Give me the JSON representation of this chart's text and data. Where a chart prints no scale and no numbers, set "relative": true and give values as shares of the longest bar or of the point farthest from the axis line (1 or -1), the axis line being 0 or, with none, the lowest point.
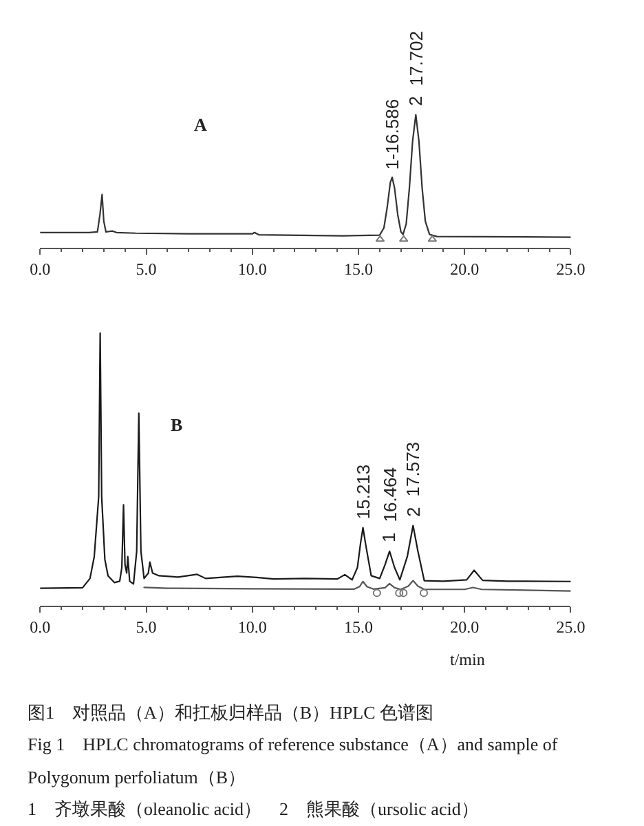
{
  "chart_data": [
    {
      "type": "line",
      "title": "A",
      "relative": true,
      "xlim": [
        0,
        25
      ],
      "xticks": [
        {
          "value": 0,
          "label": "0.0"
        },
        {
          "value": 1,
          "label": null
        },
        {
          "value": 2,
          "label": null
        },
        {
          "value": 3,
          "label": null
        },
        {
          "value": 4,
          "label": null
        },
        {
          "value": 5,
          "label": "5.0"
        },
        {
          "value": 6,
          "label": null
        },
        {
          "value": 7,
          "label": null
        },
        {
          "value": 8,
          "label": null
        },
        {
          "value": 9,
          "label": null
        },
        {
          "value": 10,
          "label": "10.0"
        },
        {
          "value": 11,
          "label": null
        },
        {
          "value": 12,
          "label": null
        },
        {
          "value": 13,
          "label": null
        },
        {
          "value": 14,
          "label": null
        },
        {
          "value": 15,
          "label": "15.0"
        },
        {
          "value": 16,
          "label": null
        },
        {
          "value": 17,
          "label": null
        },
        {
          "value": 18,
          "label": null
        },
        {
          "value": 19,
          "label": null
        },
        {
          "value": 20,
          "label": "20.0"
        },
        {
          "value": 21,
          "label": null
        },
        {
          "value": 22,
          "label": null
        },
        {
          "value": 23,
          "label": null
        },
        {
          "value": 24,
          "label": null
        },
        {
          "value": 25,
          "label": "25.0"
        }
      ],
      "series": [
        {
          "color": "#333333",
          "x": [
            0,
            2.3,
            2.7,
            2.82,
            2.92,
            3.0,
            3.1,
            3.4,
            3.6,
            4.5,
            7.0,
            10.0,
            10.1,
            10.3,
            14.3,
            16.0,
            16.2,
            16.35,
            16.5,
            16.586,
            16.7,
            16.85,
            17.0,
            17.1,
            17.25,
            17.4,
            17.55,
            17.702,
            17.85,
            18.0,
            18.15,
            18.35,
            18.7,
            25
          ],
          "values": [
            0.115,
            0.115,
            0.12,
            0.25,
            0.4,
            0.2,
            0.12,
            0.126,
            0.115,
            0.11,
            0.105,
            0.105,
            0.115,
            0.098,
            0.09,
            0.095,
            0.15,
            0.3,
            0.49,
            0.53,
            0.45,
            0.25,
            0.12,
            0.1,
            0.18,
            0.45,
            0.8,
            1.0,
            0.8,
            0.45,
            0.2,
            0.1,
            0.085,
            0.08
          ]
        },
        {
          "type": "scatter",
          "marker": "triangle",
          "color": "#777777",
          "x": [
            16.02,
            17.13,
            18.48
          ],
          "values": [
            0.063,
            0.063,
            0.063
          ]
        }
      ],
      "annotations": [
        {
          "text": "1-16.586",
          "x": 16.586,
          "y": 0.53
        },
        {
          "text": "2",
          "x": 17.702,
          "y": 1.0
        },
        {
          "text": "17.702",
          "x": 17.702,
          "y": 1.0
        }
      ]
    },
    {
      "type": "line",
      "title": "B",
      "xlabel": "t/min",
      "relative": true,
      "xlim": [
        0,
        25
      ],
      "xticks": [
        {
          "value": 0,
          "label": "0.0"
        },
        {
          "value": 1,
          "label": null
        },
        {
          "value": 2,
          "label": null
        },
        {
          "value": 3,
          "label": null
        },
        {
          "value": 4,
          "label": null
        },
        {
          "value": 5,
          "label": "5.0"
        },
        {
          "value": 6,
          "label": null
        },
        {
          "value": 7,
          "label": null
        },
        {
          "value": 8,
          "label": null
        },
        {
          "value": 9,
          "label": null
        },
        {
          "value": 10,
          "label": "10.0"
        },
        {
          "value": 11,
          "label": null
        },
        {
          "value": 12,
          "label": null
        },
        {
          "value": 13,
          "label": null
        },
        {
          "value": 14,
          "label": null
        },
        {
          "value": 15,
          "label": "15.0"
        },
        {
          "value": 16,
          "label": null
        },
        {
          "value": 17,
          "label": null
        },
        {
          "value": 18,
          "label": null
        },
        {
          "value": 19,
          "label": null
        },
        {
          "value": 20,
          "label": "20.0"
        },
        {
          "value": 21,
          "label": null
        },
        {
          "value": 22,
          "label": null
        },
        {
          "value": 23,
          "label": null
        },
        {
          "value": 24,
          "label": null
        },
        {
          "value": 25,
          "label": "25.0"
        }
      ],
      "series": [
        {
          "color": "#1a1a1a",
          "x": [
            0,
            2.0,
            2.35,
            2.55,
            2.76,
            2.83,
            2.9,
            3.05,
            3.2,
            3.5,
            3.75,
            3.85,
            3.93,
            4.0,
            4.08,
            4.13,
            4.22,
            4.4,
            4.55,
            4.65,
            4.75,
            4.9,
            5.1,
            5.17,
            5.3,
            5.6,
            6.5,
            7.4,
            7.8,
            8.7,
            9.3,
            10.2,
            11.0,
            12.5,
            14.0,
            14.36,
            14.7,
            14.95,
            15.1,
            15.213,
            15.35,
            15.6,
            16.0,
            16.25,
            16.464,
            16.7,
            16.95,
            17.3,
            17.573,
            17.8,
            18.1,
            19.0,
            20.1,
            20.45,
            20.85,
            22.0,
            25.0
          ],
          "values": [
            0.064,
            0.066,
            0.1,
            0.18,
            0.4,
            1.0,
            0.4,
            0.17,
            0.11,
            0.085,
            0.09,
            0.14,
            0.37,
            0.15,
            0.12,
            0.18,
            0.09,
            0.08,
            0.2,
            0.706,
            0.2,
            0.1,
            0.12,
            0.16,
            0.12,
            0.11,
            0.105,
            0.115,
            0.1,
            0.105,
            0.108,
            0.104,
            0.098,
            0.1,
            0.098,
            0.114,
            0.095,
            0.14,
            0.23,
            0.286,
            0.22,
            0.11,
            0.1,
            0.15,
            0.2,
            0.14,
            0.095,
            0.18,
            0.294,
            0.2,
            0.092,
            0.09,
            0.095,
            0.13,
            0.093,
            0.09,
            0.089
          ]
        },
        {
          "color": "#555555",
          "x": [
            4.9,
            6.0,
            10.0,
            14.8,
            15.05,
            15.213,
            15.4,
            15.7,
            16.25,
            16.464,
            16.7,
            17.0,
            17.35,
            17.573,
            17.8,
            18.1,
            20.0,
            20.4,
            20.8,
            25.0
          ],
          "values": [
            0.067,
            0.064,
            0.062,
            0.061,
            0.07,
            0.089,
            0.07,
            0.061,
            0.066,
            0.081,
            0.066,
            0.06,
            0.072,
            0.092,
            0.072,
            0.06,
            0.06,
            0.067,
            0.06,
            0.054
          ]
        },
        {
          "type": "scatter",
          "marker": "circle",
          "color": "#777777",
          "x": [
            15.87,
            16.92,
            17.12,
            18.08
          ],
          "values": [
            0.047,
            0.047,
            0.047,
            0.047
          ]
        }
      ],
      "annotations": [
        {
          "text": "15.213",
          "x": 15.213,
          "y": 0.286
        },
        {
          "text": "1",
          "x": 16.464,
          "y": 0.2
        },
        {
          "text": "16.464",
          "x": 16.464,
          "y": 0.2
        },
        {
          "text": "2",
          "x": 17.573,
          "y": 0.294
        },
        {
          "text": "17.573",
          "x": 17.573,
          "y": 0.294
        },
        "图1　对照品（A）和扛板归样品（B）HPLC 色谱图",
        "Fig 1　HPLC chromatograms of reference substance（A）and sample of Polygonum perfoliatum（B）",
        "1　齐墩果酸（oleanolic acid）　2　熊果酸（ursolic acid）"
      ]
    }
  ]
}
